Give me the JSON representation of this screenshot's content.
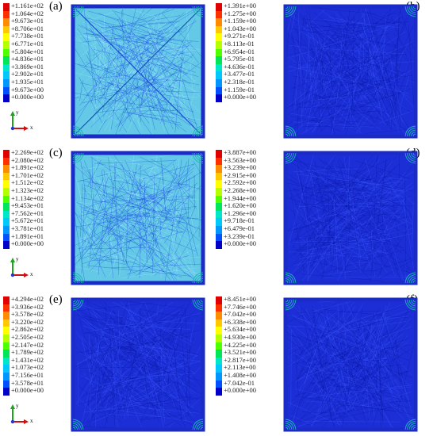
{
  "panels": [
    {
      "id": "a",
      "letter": "(a)",
      "fill": "cyan",
      "legend": [
        "+1.161e+02",
        "+1.064e+02",
        "+9.673e+01",
        "+8.706e+01",
        "+7.738e+01",
        "+6.771e+01",
        "+5.804e+01",
        "+4.836e+01",
        "+3.869e+01",
        "+2.902e+01",
        "+1.935e+01",
        "+9.673e+00",
        "+0.000e+00"
      ],
      "legend_colors": [
        "#e00000",
        "#ff3000",
        "#ff8c00",
        "#ffc800",
        "#ffff00",
        "#b4ff00",
        "#50ff00",
        "#00e65a",
        "#00e6c8",
        "#00c8ff",
        "#0096ff",
        "#0050ff",
        "#0000c8"
      ],
      "axis": {
        "y": "y",
        "x": "x"
      }
    },
    {
      "id": "b",
      "letter": "(b)",
      "fill": "blue",
      "legend": [
        "+1.391e+00",
        "+1.275e+00",
        "+1.159e+00",
        "+1.043e+00",
        "+9.271e-01",
        "+8.113e-01",
        "+6.954e-01",
        "+5.795e-01",
        "+4.636e-01",
        "+3.477e-01",
        "+2.318e-01",
        "+1.159e-01",
        "+0.000e+00"
      ],
      "legend_colors": [
        "#e00000",
        "#ff3000",
        "#ff8c00",
        "#ffc800",
        "#ffff00",
        "#b4ff00",
        "#50ff00",
        "#00e65a",
        "#00e6c8",
        "#00c8ff",
        "#0096ff",
        "#0050ff",
        "#0000c8"
      ],
      "axis": {
        "y": "",
        "x": ""
      }
    },
    {
      "id": "c",
      "letter": "(c)",
      "fill": "cyan",
      "legend": [
        "+2.269e+02",
        "+2.080e+02",
        "+1.891e+02",
        "+1.701e+02",
        "+1.512e+02",
        "+1.323e+02",
        "+1.134e+02",
        "+9.453e+01",
        "+7.562e+01",
        "+5.672e+01",
        "+3.781e+01",
        "+1.891e+01",
        "+0.000e+00"
      ],
      "legend_colors": [
        "#e00000",
        "#ff3000",
        "#ff8c00",
        "#ffc800",
        "#ffff00",
        "#b4ff00",
        "#50ff00",
        "#00e65a",
        "#00e6c8",
        "#00c8ff",
        "#0096ff",
        "#0050ff",
        "#0000c8"
      ],
      "axis": {
        "y": "y",
        "x": "x"
      }
    },
    {
      "id": "d",
      "letter": "(d)",
      "fill": "blue",
      "legend": [
        "+3.887e+00",
        "+3.563e+00",
        "+3.239e+00",
        "+2.915e+00",
        "+2.592e+00",
        "+2.268e+00",
        "+1.944e+00",
        "+1.620e+00",
        "+1.296e+00",
        "+9.718e-01",
        "+6.479e-01",
        "+3.239e-01",
        "+0.000e+00"
      ],
      "legend_colors": [
        "#e00000",
        "#ff3000",
        "#ff8c00",
        "#ffc800",
        "#ffff00",
        "#b4ff00",
        "#50ff00",
        "#00e65a",
        "#00e6c8",
        "#00c8ff",
        "#0096ff",
        "#0050ff",
        "#0000c8"
      ],
      "axis": {
        "y": "",
        "x": ""
      }
    },
    {
      "id": "e",
      "letter": "(e)",
      "fill": "blue",
      "legend": [
        "+4.294e+02",
        "+3.936e+02",
        "+3.578e+02",
        "+3.220e+02",
        "+2.862e+02",
        "+2.505e+02",
        "+2.147e+02",
        "+1.789e+02",
        "+1.431e+02",
        "+1.073e+02",
        "+7.156e+01",
        "+3.578e+01",
        "+0.000e+00"
      ],
      "legend_colors": [
        "#e00000",
        "#ff3000",
        "#ff8c00",
        "#ffc800",
        "#ffff00",
        "#b4ff00",
        "#50ff00",
        "#00e65a",
        "#00e6c8",
        "#00c8ff",
        "#0096ff",
        "#0050ff",
        "#0000c8"
      ],
      "axis": {
        "y": "y",
        "x": "x"
      }
    },
    {
      "id": "f",
      "letter": "(f)",
      "fill": "blue",
      "legend": [
        "+8.451e+00",
        "+7.746e+00",
        "+7.042e+00",
        "+6.338e+00",
        "+5.634e+00",
        "+4.930e+00",
        "+4.225e+00",
        "+3.521e+00",
        "+2.817e+00",
        "+2.113e+00",
        "+1.408e+00",
        "+7.042e-01",
        "+0.000e+00"
      ],
      "legend_colors": [
        "#e00000",
        "#ff3000",
        "#ff8c00",
        "#ffc800",
        "#ffff00",
        "#b4ff00",
        "#50ff00",
        "#00e65a",
        "#00e6c8",
        "#00c8ff",
        "#0096ff",
        "#0050ff",
        "#0000c8"
      ],
      "axis": {
        "y": "",
        "x": ""
      }
    }
  ]
}
